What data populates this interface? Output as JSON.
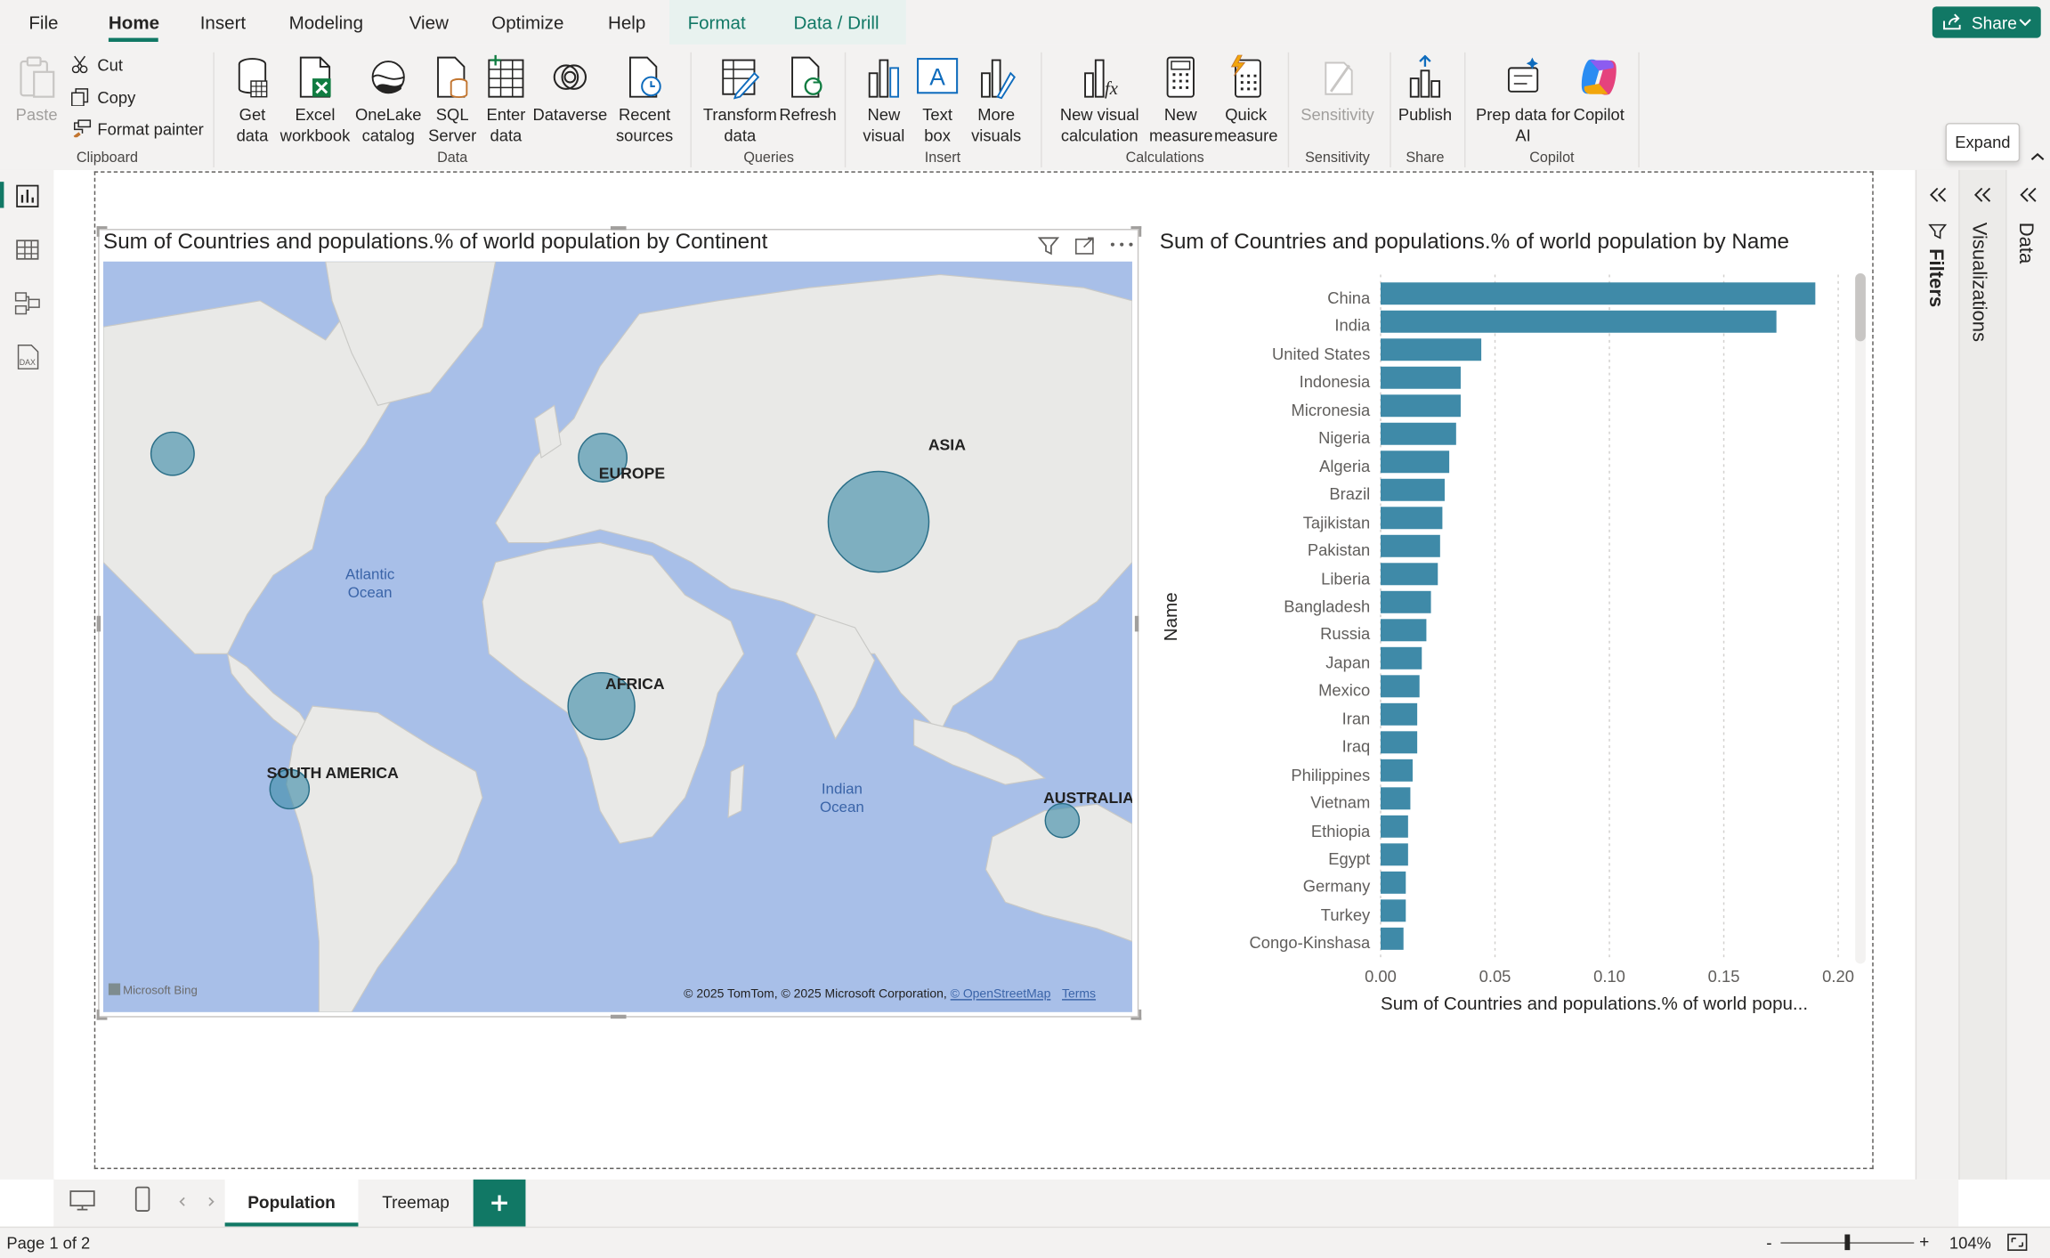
{
  "menu": {
    "items": [
      "File",
      "Home",
      "Insert",
      "Modeling",
      "View",
      "Optimize",
      "Help",
      "Format",
      "Data / Drill"
    ],
    "share": "Share"
  },
  "ribbon": {
    "clipboard": {
      "paste": "Paste",
      "cut": "Cut",
      "copy": "Copy",
      "format_painter": "Format painter",
      "label": "Clipboard"
    },
    "data": {
      "get_data": [
        "Get",
        "data"
      ],
      "excel": [
        "Excel",
        "workbook"
      ],
      "onelake": [
        "OneLake",
        "catalog"
      ],
      "sql": [
        "SQL",
        "Server"
      ],
      "enter": [
        "Enter",
        "data"
      ],
      "dataverse": "Dataverse",
      "recent": [
        "Recent",
        "sources"
      ],
      "label": "Data"
    },
    "queries": {
      "transform": [
        "Transform",
        "data"
      ],
      "refresh": "Refresh",
      "label": "Queries"
    },
    "insert": {
      "new_visual": [
        "New",
        "visual"
      ],
      "text_box": [
        "Text",
        "box"
      ],
      "more_visuals": [
        "More",
        "visuals"
      ],
      "label": "Insert"
    },
    "calculations": {
      "new_visual_calc": [
        "New visual",
        "calculation"
      ],
      "new_measure": [
        "New",
        "measure"
      ],
      "quick_measure": [
        "Quick",
        "measure"
      ],
      "label": "Calculations"
    },
    "sensitivity": {
      "button": "Sensitivity",
      "label": "Sensitivity"
    },
    "share": {
      "publish": "Publish",
      "label": "Share"
    },
    "copilot": {
      "prep": [
        "Prep data for",
        "AI"
      ],
      "copilot": "Copilot",
      "label": "Copilot"
    }
  },
  "tooltip": "Expand",
  "map_visual": {
    "title": "Sum of Countries and populations.% of world population by Continent",
    "labels": {
      "europe": "EUROPE",
      "asia": "ASIA",
      "africa": "AFRICA",
      "south_america": "SOUTH AMERICA",
      "australia": "AUSTRALIA"
    },
    "oceans": {
      "atlantic": [
        "Atlantic",
        "Ocean"
      ],
      "indian": [
        "Indian",
        "Ocean"
      ]
    },
    "bing": "Microsoft Bing",
    "copyright": "© 2025 TomTom, © 2025 Microsoft Corporation,",
    "osm": "© OpenStreetMap",
    "terms": "Terms",
    "bubble_color": "#3b8aa8"
  },
  "chart_data": {
    "type": "bar",
    "title": "Sum of Countries and populations.% of world population by Name",
    "ylabel": "Name",
    "xlabel": "Sum of Countries and populations.% of world popu...",
    "categories": [
      "China",
      "India",
      "United States",
      "Indonesia",
      "Micronesia",
      "Nigeria",
      "Algeria",
      "Brazil",
      "Tajikistan",
      "Pakistan",
      "Liberia",
      "Bangladesh",
      "Russia",
      "Japan",
      "Mexico",
      "Iran",
      "Iraq",
      "Philippines",
      "Vietnam",
      "Ethiopia",
      "Egypt",
      "Germany",
      "Turkey",
      "Congo-Kinshasa"
    ],
    "values": [
      0.19,
      0.173,
      0.044,
      0.035,
      0.035,
      0.033,
      0.03,
      0.028,
      0.027,
      0.026,
      0.025,
      0.022,
      0.02,
      0.018,
      0.017,
      0.016,
      0.016,
      0.014,
      0.013,
      0.012,
      0.012,
      0.011,
      0.011,
      0.01
    ],
    "ticks": [
      "0.00",
      "0.05",
      "0.10",
      "0.15",
      "0.20"
    ],
    "xlim": [
      0,
      0.2
    ],
    "color": "#3f8aa8"
  },
  "panes": {
    "filters": "Filters",
    "visualizations": "Visualizations",
    "data": "Data"
  },
  "tabs": [
    "Population",
    "Treemap"
  ],
  "status": {
    "page": "Page 1 of 2",
    "zoom": "104%"
  }
}
